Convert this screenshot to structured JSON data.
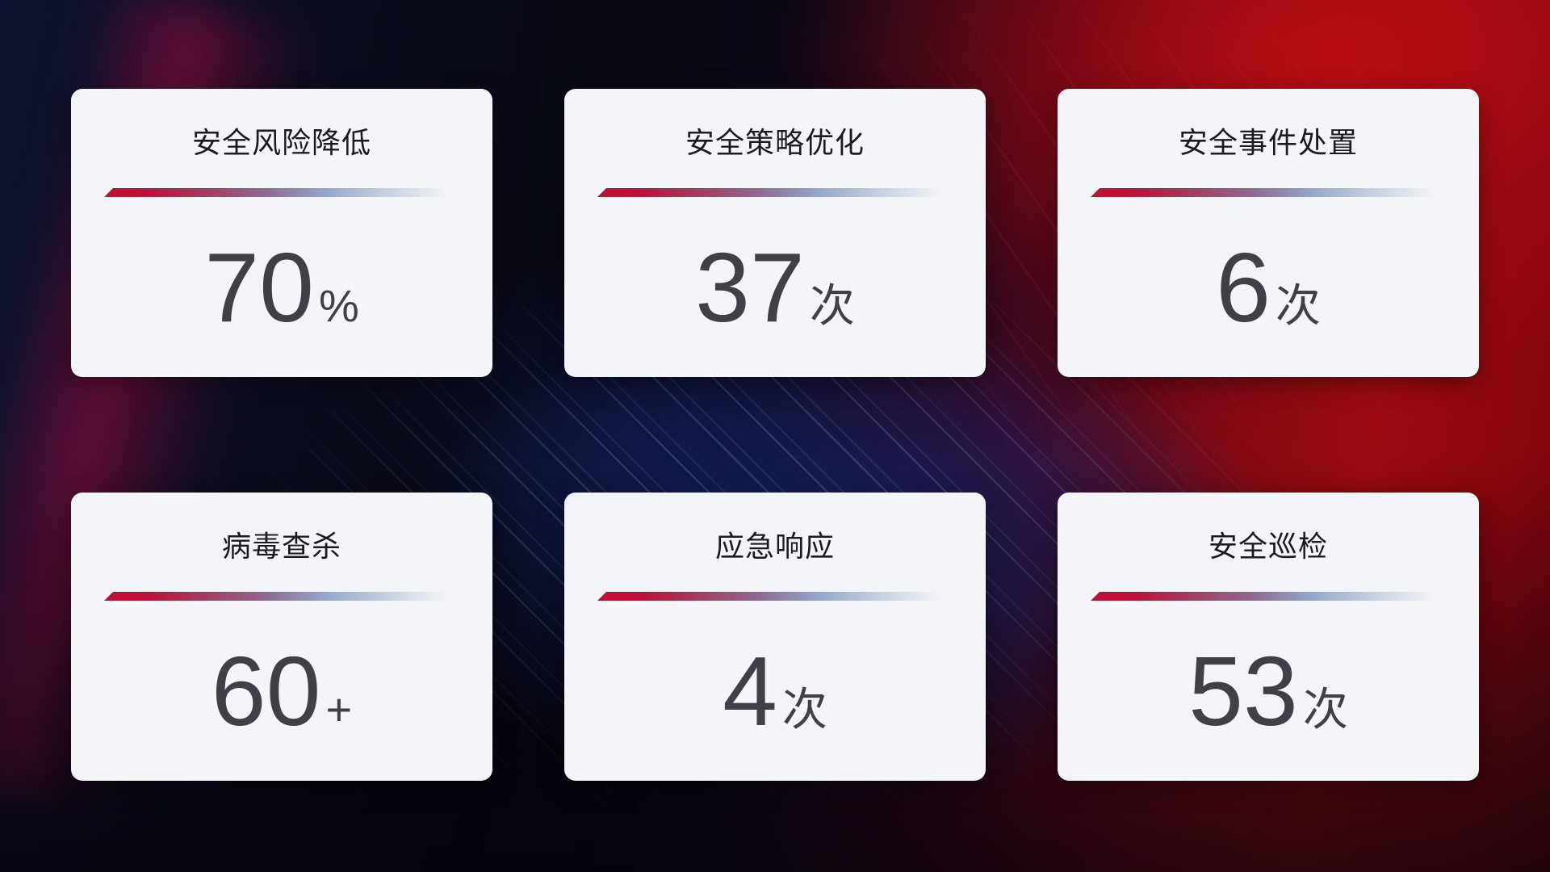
{
  "colors": {
    "card_bg": "#f4f5f9",
    "title_text": "#1b1b22",
    "value_text": "#404148",
    "divider_red": "#c50d37",
    "divider_blue": "#94a6c9",
    "bg_navy": "#0d122e",
    "bg_red": "#9c0a10",
    "bg_blue_glow": "#162670"
  },
  "cards": [
    {
      "title": "安全风险降低",
      "value": "70",
      "unit": "%"
    },
    {
      "title": "安全策略优化",
      "value": "37",
      "unit": "次"
    },
    {
      "title": "安全事件处置",
      "value": "6",
      "unit": "次"
    },
    {
      "title": "病毒查杀",
      "value": "60",
      "unit": "+"
    },
    {
      "title": "应急响应",
      "value": "4",
      "unit": "次"
    },
    {
      "title": "安全巡检",
      "value": "53",
      "unit": "次"
    }
  ]
}
